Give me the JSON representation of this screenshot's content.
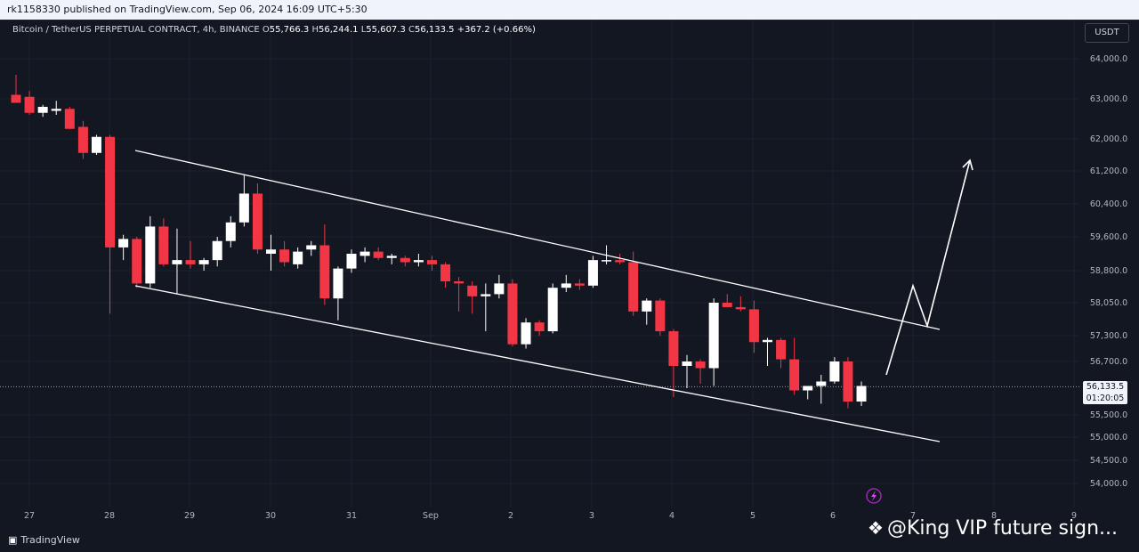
{
  "header": {
    "publish_line": "rk1158330 published on TradingView.com, Sep 06, 2024 16:09 UTC+5:30"
  },
  "legend": {
    "symbol": "Bitcoin / TetherUS PERPETUAL CONTRACT, 4h, BINANCE",
    "o_label": "O",
    "o_value": "55,766.3",
    "h_label": "H",
    "h_value": "56,244.1",
    "l_label": "L",
    "l_value": "55,607.3",
    "c_label": "C",
    "c_value": "56,133.5",
    "change": "+367.2 (+0.66%)"
  },
  "currency_button": "USDT",
  "price_tag": {
    "price": "56,133.5",
    "countdown": "01:20:05"
  },
  "footer": {
    "logo_text": "TradingView",
    "watermark": "@King VIP future sign..."
  },
  "colors": {
    "background": "#131722",
    "up": "#ffffff",
    "down": "#f23645",
    "trendline": "#ffffff"
  },
  "icons": {
    "logo": "tradingview-logo-icon",
    "watermark": "binance-diamond-icon",
    "event": "lightning-event-icon"
  },
  "chart_data": {
    "type": "candlestick",
    "timeframe": "4h",
    "y_ticks": [
      "64,000.0",
      "63,000.0",
      "62,000.0",
      "61,200.0",
      "60,400.0",
      "59,600.0",
      "58,800.0",
      "58,050.0",
      "57,300.0",
      "56,700.0",
      "55,500.0",
      "55,000.0",
      "54,500.0",
      "54,000.0"
    ],
    "y_tick_values": [
      64000,
      63000,
      62000,
      61200,
      60400,
      59600,
      58800,
      58050,
      57300,
      56700,
      55500,
      55000,
      54500,
      54000
    ],
    "x_labels": [
      "27",
      "28",
      "29",
      "30",
      "31",
      "Sep",
      "2",
      "3",
      "4",
      "5",
      "6",
      "7",
      "8",
      "9"
    ],
    "last_price": 56133.5,
    "candles": [
      {
        "o": 63100,
        "h": 63600,
        "l": 62950,
        "c": 62900
      },
      {
        "o": 63050,
        "h": 63200,
        "l": 62600,
        "c": 62650
      },
      {
        "o": 62650,
        "h": 62850,
        "l": 62550,
        "c": 62800
      },
      {
        "o": 62700,
        "h": 62950,
        "l": 62600,
        "c": 62750
      },
      {
        "o": 62750,
        "h": 62800,
        "l": 62250,
        "c": 62250
      },
      {
        "o": 62300,
        "h": 62450,
        "l": 61500,
        "c": 61650
      },
      {
        "o": 61650,
        "h": 62100,
        "l": 61600,
        "c": 62050
      },
      {
        "o": 62050,
        "h": 62100,
        "l": 57800,
        "c": 59350
      },
      {
        "o": 59350,
        "h": 59650,
        "l": 59050,
        "c": 59550
      },
      {
        "o": 59550,
        "h": 59600,
        "l": 58400,
        "c": 58500
      },
      {
        "o": 58500,
        "h": 60100,
        "l": 58400,
        "c": 59850
      },
      {
        "o": 59850,
        "h": 60050,
        "l": 58900,
        "c": 58950
      },
      {
        "o": 58950,
        "h": 59800,
        "l": 58250,
        "c": 59050
      },
      {
        "o": 59050,
        "h": 59500,
        "l": 58850,
        "c": 58950
      },
      {
        "o": 58950,
        "h": 59100,
        "l": 58800,
        "c": 59050
      },
      {
        "o": 59050,
        "h": 59600,
        "l": 58900,
        "c": 59500
      },
      {
        "o": 59500,
        "h": 60100,
        "l": 59350,
        "c": 59950
      },
      {
        "o": 59950,
        "h": 61100,
        "l": 59850,
        "c": 60650
      },
      {
        "o": 60650,
        "h": 60900,
        "l": 59200,
        "c": 59300
      },
      {
        "o": 59200,
        "h": 59650,
        "l": 58800,
        "c": 59300
      },
      {
        "o": 59300,
        "h": 59500,
        "l": 58900,
        "c": 59000
      },
      {
        "o": 58950,
        "h": 59350,
        "l": 58850,
        "c": 59250
      },
      {
        "o": 59300,
        "h": 59500,
        "l": 59150,
        "c": 59400
      },
      {
        "o": 59400,
        "h": 59900,
        "l": 58000,
        "c": 58150
      },
      {
        "o": 58150,
        "h": 58900,
        "l": 57650,
        "c": 58850
      },
      {
        "o": 58850,
        "h": 59300,
        "l": 58750,
        "c": 59200
      },
      {
        "o": 59150,
        "h": 59350,
        "l": 59000,
        "c": 59250
      },
      {
        "o": 59250,
        "h": 59350,
        "l": 59050,
        "c": 59100
      },
      {
        "o": 59100,
        "h": 59200,
        "l": 58950,
        "c": 59150
      },
      {
        "o": 59100,
        "h": 59150,
        "l": 58900,
        "c": 59000
      },
      {
        "o": 59000,
        "h": 59200,
        "l": 58900,
        "c": 59050
      },
      {
        "o": 59050,
        "h": 59150,
        "l": 58800,
        "c": 58950
      },
      {
        "o": 58950,
        "h": 59000,
        "l": 58400,
        "c": 58550
      },
      {
        "o": 58550,
        "h": 58650,
        "l": 57850,
        "c": 58500
      },
      {
        "o": 58450,
        "h": 58550,
        "l": 57800,
        "c": 58200
      },
      {
        "o": 58200,
        "h": 58500,
        "l": 57400,
        "c": 58250
      },
      {
        "o": 58250,
        "h": 58700,
        "l": 58150,
        "c": 58500
      },
      {
        "o": 58500,
        "h": 58600,
        "l": 57050,
        "c": 57100
      },
      {
        "o": 57100,
        "h": 57700,
        "l": 57000,
        "c": 57600
      },
      {
        "o": 57600,
        "h": 57650,
        "l": 57300,
        "c": 57400
      },
      {
        "o": 57400,
        "h": 58500,
        "l": 57350,
        "c": 58400
      },
      {
        "o": 58400,
        "h": 58700,
        "l": 58300,
        "c": 58500
      },
      {
        "o": 58500,
        "h": 58600,
        "l": 58350,
        "c": 58450
      },
      {
        "o": 58450,
        "h": 59150,
        "l": 58400,
        "c": 59050
      },
      {
        "o": 59050,
        "h": 59400,
        "l": 58950,
        "c": 59050
      },
      {
        "o": 59050,
        "h": 59200,
        "l": 58950,
        "c": 59000
      },
      {
        "o": 59000,
        "h": 59250,
        "l": 57750,
        "c": 57850
      },
      {
        "o": 57850,
        "h": 58150,
        "l": 57550,
        "c": 58100
      },
      {
        "o": 58100,
        "h": 58150,
        "l": 57300,
        "c": 57400
      },
      {
        "o": 57400,
        "h": 57450,
        "l": 55900,
        "c": 56600
      },
      {
        "o": 56600,
        "h": 56850,
        "l": 56100,
        "c": 56700
      },
      {
        "o": 56700,
        "h": 56750,
        "l": 56200,
        "c": 56550
      },
      {
        "o": 56550,
        "h": 58150,
        "l": 56150,
        "c": 58050
      },
      {
        "o": 58050,
        "h": 58250,
        "l": 57950,
        "c": 57950
      },
      {
        "o": 57950,
        "h": 58200,
        "l": 57850,
        "c": 57900
      },
      {
        "o": 57900,
        "h": 58100,
        "l": 56900,
        "c": 57150
      },
      {
        "o": 57150,
        "h": 57250,
        "l": 56600,
        "c": 57200
      },
      {
        "o": 57200,
        "h": 57250,
        "l": 56550,
        "c": 56750
      },
      {
        "o": 56750,
        "h": 57250,
        "l": 55950,
        "c": 56050
      },
      {
        "o": 56050,
        "h": 56150,
        "l": 55850,
        "c": 56150
      },
      {
        "o": 56150,
        "h": 56400,
        "l": 55750,
        "c": 56250
      },
      {
        "o": 56250,
        "h": 56800,
        "l": 56200,
        "c": 56700
      },
      {
        "o": 56700,
        "h": 56800,
        "l": 55650,
        "c": 55800
      },
      {
        "o": 55800,
        "h": 56250,
        "l": 55700,
        "c": 56150
      }
    ]
  }
}
